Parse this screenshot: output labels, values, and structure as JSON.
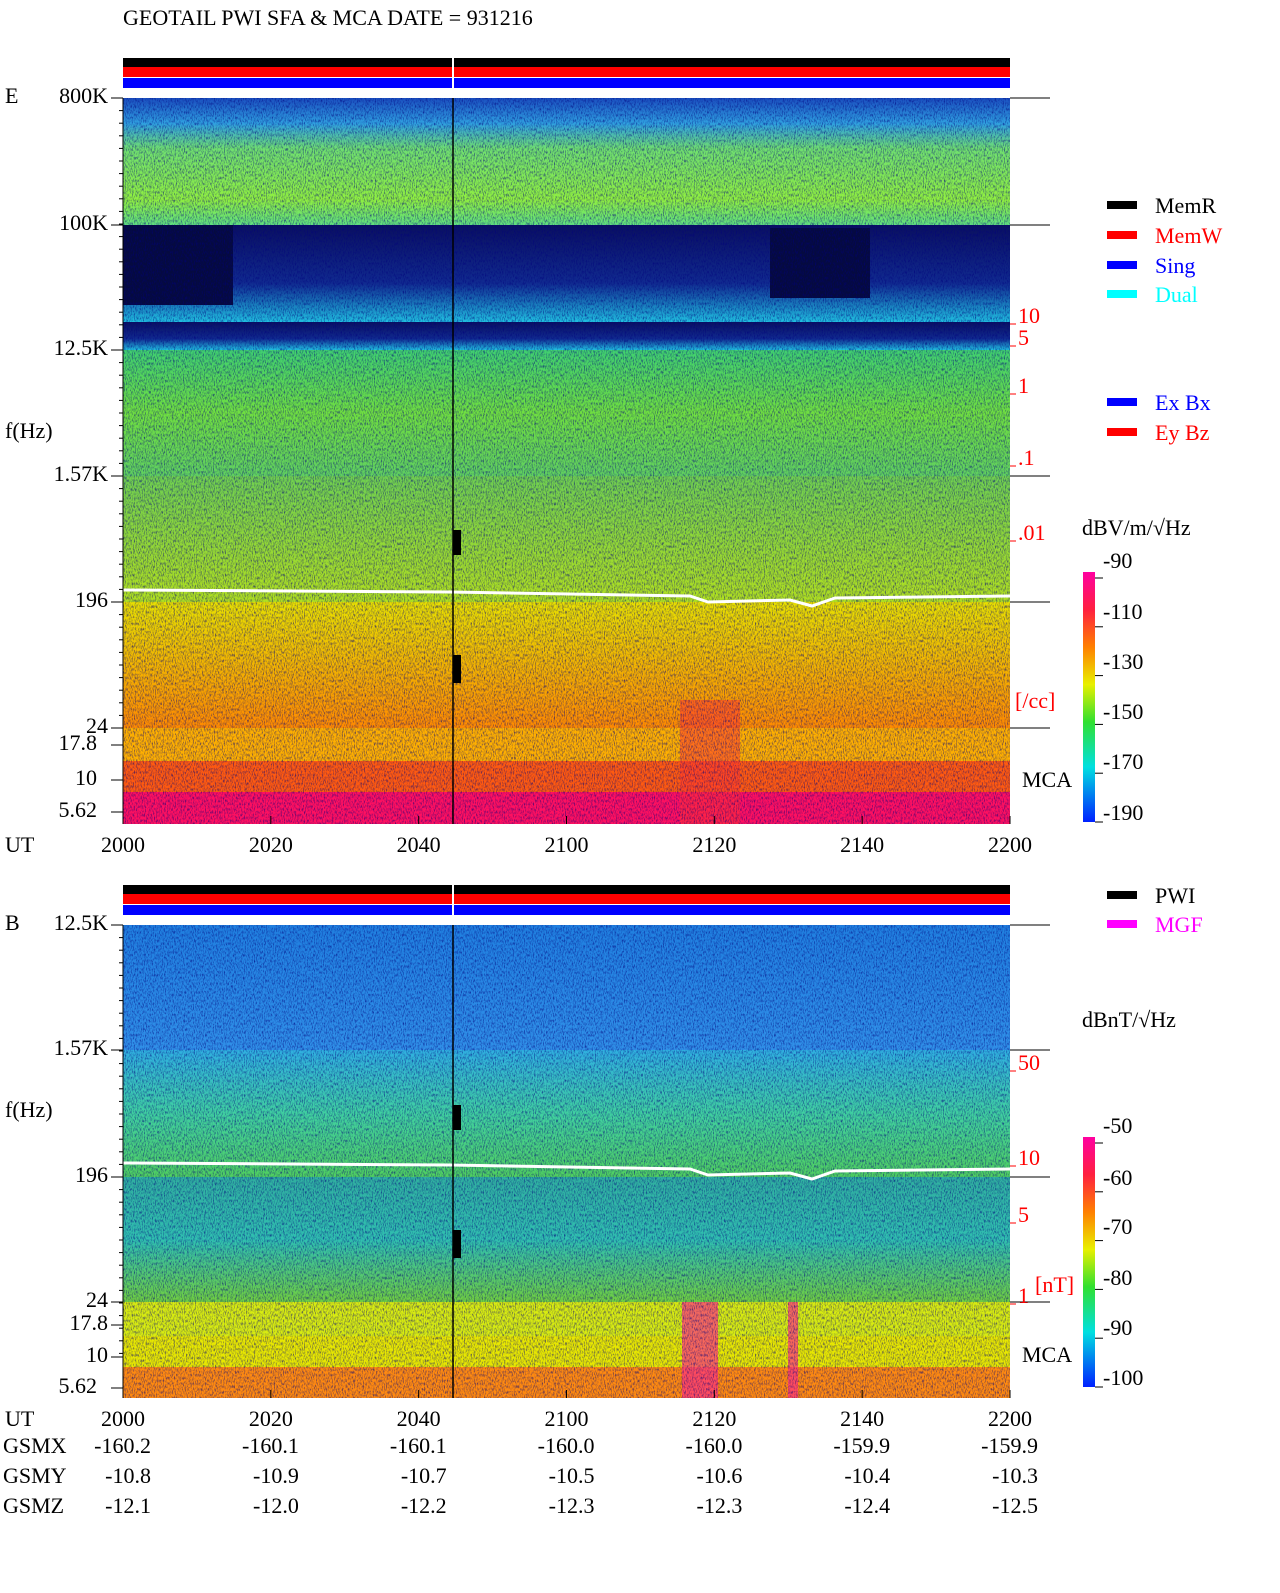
{
  "title": "GEOTAIL  PWI SFA & MCA  DATE = 931216",
  "x_axis": {
    "label": "UT",
    "ticks": [
      "2000",
      "2020",
      "2040",
      "2100",
      "2120",
      "2140",
      "2200"
    ]
  },
  "panels": [
    {
      "label": "E",
      "y_label": "f(Hz)",
      "y_ticks": [
        "800K",
        "100K",
        "12.5K",
        "1.57K",
        "196",
        "24",
        "17.8",
        "10",
        "5.62"
      ],
      "right_ticks": [
        "10",
        "5",
        "1",
        ".1",
        ".01"
      ],
      "right_unit": "[/cc]",
      "mca_label": "MCA",
      "legend": [
        {
          "name": "MemR",
          "color": "#000000"
        },
        {
          "name": "MemW",
          "color": "#ff0000"
        },
        {
          "name": "Sing",
          "color": "#0000ff"
        },
        {
          "name": "Dual",
          "color": "#00ffff"
        }
      ],
      "legend2": [
        {
          "name": "Ex Bx",
          "color": "#0000ff"
        },
        {
          "name": "Ey Bz",
          "color": "#ff0000"
        }
      ],
      "colorbar": {
        "unit": "dBV/m/√Hz",
        "ticks": [
          "-90",
          "-110",
          "-130",
          "-150",
          "-170",
          "-190"
        ]
      }
    },
    {
      "label": "B",
      "y_label": "f(Hz)",
      "y_ticks": [
        "12.5K",
        "1.57K",
        "196",
        "24",
        "17.8",
        "10",
        "5.62"
      ],
      "right_ticks": [
        "50",
        "10",
        "5",
        "1"
      ],
      "right_unit": "[nT]",
      "mca_label": "MCA",
      "legend": [
        {
          "name": "PWI",
          "color": "#000000"
        },
        {
          "name": "MGF",
          "color": "#ff00ff"
        }
      ],
      "legend2": [],
      "colorbar": {
        "unit": "dBnT/√Hz",
        "ticks": [
          "-50",
          "-60",
          "-70",
          "-80",
          "-90",
          "-100"
        ]
      }
    }
  ],
  "orbit": [
    {
      "label": "GSMX",
      "values": [
        "-160.2",
        "-160.1",
        "-160.1",
        "-160.0",
        "-160.0",
        "-159.9",
        "-159.9"
      ]
    },
    {
      "label": "GSMY",
      "values": [
        "-10.8",
        "-10.9",
        "-10.7",
        "-10.5",
        "-10.6",
        "-10.4",
        "-10.3"
      ]
    },
    {
      "label": "GSMZ",
      "values": [
        "-12.1",
        "-12.0",
        "-12.2",
        "-12.3",
        "-12.3",
        "-12.4",
        "-12.5"
      ]
    }
  ]
}
